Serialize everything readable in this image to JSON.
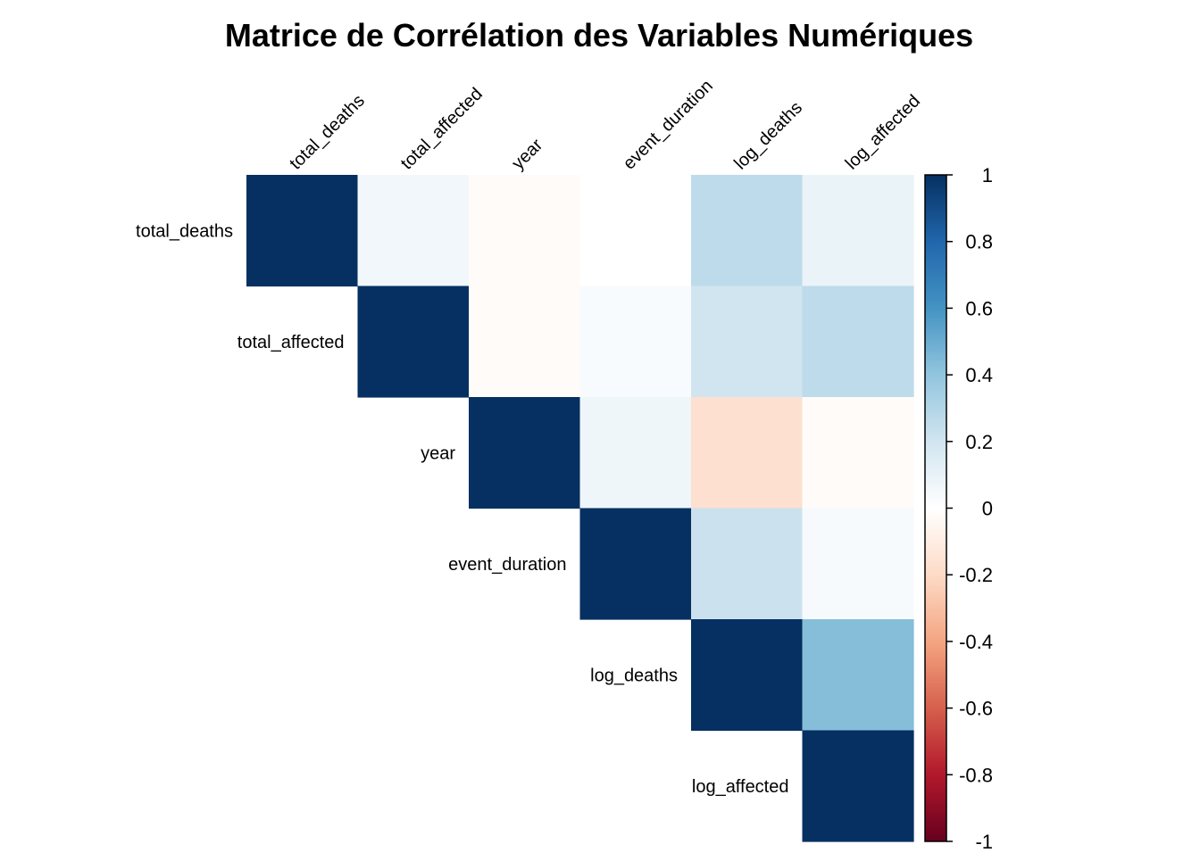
{
  "chart_data": {
    "type": "heatmap",
    "title": "Matrice de Corrélation des Variables Numériques",
    "layout": "upper-triangle",
    "variables": [
      "total_deaths",
      "total_affected",
      "year",
      "event_duration",
      "log_deaths",
      "log_affected"
    ],
    "matrix": [
      [
        1.0,
        0.06,
        -0.02,
        0.0,
        0.26,
        0.09
      ],
      [
        0.06,
        1.0,
        -0.02,
        0.03,
        0.2,
        0.26
      ],
      [
        -0.02,
        -0.02,
        1.0,
        0.07,
        -0.17,
        -0.02
      ],
      [
        0.0,
        0.03,
        0.07,
        1.0,
        0.22,
        0.04
      ],
      [
        0.26,
        0.2,
        -0.17,
        0.22,
        1.0,
        0.43
      ],
      [
        0.09,
        0.26,
        -0.02,
        0.04,
        0.43,
        1.0
      ]
    ],
    "color_scale": {
      "range": [
        -1,
        1
      ],
      "ticks": [
        "1",
        "0.8",
        "0.6",
        "0.4",
        "0.2",
        "0",
        "-0.2",
        "-0.4",
        "-0.6",
        "-0.8",
        "-1"
      ],
      "colors": [
        "#67001F",
        "#B2182B",
        "#D6604D",
        "#F4A582",
        "#FDDBC7",
        "#FFFFFF",
        "#D1E5F0",
        "#92C5DE",
        "#4393C3",
        "#2166AC",
        "#053061"
      ]
    }
  }
}
